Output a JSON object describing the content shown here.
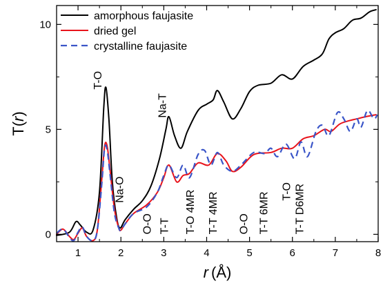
{
  "chart_data": {
    "type": "line",
    "title": "",
    "xlabel": {
      "var": "r",
      "unit": "(Å)"
    },
    "ylabel": {
      "main": "T(",
      "var": "r",
      "close": ")"
    },
    "xlim": [
      0.5,
      8.0
    ],
    "ylim": [
      -0.35,
      10.9
    ],
    "xticks": [
      1,
      2,
      3,
      4,
      5,
      6,
      7,
      8
    ],
    "yticks": [
      0,
      5,
      10
    ],
    "grid": false,
    "legend_position": "top-left",
    "series": [
      {
        "name": "amorphous faujasite",
        "color": "#000000",
        "dash": "",
        "points": [
          [
            0.5,
            -0.05
          ],
          [
            0.8,
            0.1
          ],
          [
            0.95,
            0.6
          ],
          [
            1.05,
            0.45
          ],
          [
            1.2,
            0.1
          ],
          [
            1.35,
            0.2
          ],
          [
            1.5,
            2.0
          ],
          [
            1.6,
            6.0
          ],
          [
            1.65,
            7.0
          ],
          [
            1.72,
            5.5
          ],
          [
            1.8,
            2.5
          ],
          [
            1.9,
            0.8
          ],
          [
            1.98,
            0.3
          ],
          [
            2.1,
            0.7
          ],
          [
            2.3,
            1.2
          ],
          [
            2.5,
            1.6
          ],
          [
            2.7,
            2.3
          ],
          [
            2.9,
            3.6
          ],
          [
            3.05,
            5.0
          ],
          [
            3.12,
            5.6
          ],
          [
            3.25,
            4.7
          ],
          [
            3.4,
            4.1
          ],
          [
            3.55,
            4.9
          ],
          [
            3.8,
            5.9
          ],
          [
            4.0,
            6.2
          ],
          [
            4.15,
            6.4
          ],
          [
            4.25,
            6.85
          ],
          [
            4.4,
            6.3
          ],
          [
            4.6,
            5.5
          ],
          [
            4.8,
            6.0
          ],
          [
            5.0,
            6.8
          ],
          [
            5.2,
            7.1
          ],
          [
            5.5,
            7.2
          ],
          [
            5.75,
            7.6
          ],
          [
            6.0,
            7.4
          ],
          [
            6.25,
            8.0
          ],
          [
            6.5,
            8.3
          ],
          [
            6.7,
            8.6
          ],
          [
            6.85,
            9.3
          ],
          [
            7.0,
            9.6
          ],
          [
            7.2,
            9.8
          ],
          [
            7.4,
            10.2
          ],
          [
            7.6,
            10.3
          ],
          [
            7.8,
            10.6
          ],
          [
            7.95,
            10.7
          ]
        ]
      },
      {
        "name": "dried gel",
        "color": "#e8131b",
        "dash": "",
        "points": [
          [
            0.5,
            0.0
          ],
          [
            0.65,
            0.25
          ],
          [
            0.8,
            -0.1
          ],
          [
            0.9,
            -0.25
          ],
          [
            1.0,
            0.05
          ],
          [
            1.1,
            0.3
          ],
          [
            1.2,
            -0.1
          ],
          [
            1.35,
            -0.3
          ],
          [
            1.45,
            0.2
          ],
          [
            1.55,
            2.5
          ],
          [
            1.62,
            4.2
          ],
          [
            1.68,
            4.2
          ],
          [
            1.75,
            3.0
          ],
          [
            1.85,
            1.2
          ],
          [
            1.95,
            0.3
          ],
          [
            2.0,
            0.2
          ],
          [
            2.1,
            0.5
          ],
          [
            2.3,
            1.0
          ],
          [
            2.6,
            1.4
          ],
          [
            2.85,
            2.0
          ],
          [
            3.0,
            2.7
          ],
          [
            3.12,
            3.3
          ],
          [
            3.3,
            2.5
          ],
          [
            3.45,
            2.8
          ],
          [
            3.6,
            2.9
          ],
          [
            3.8,
            3.4
          ],
          [
            4.05,
            3.3
          ],
          [
            4.25,
            3.85
          ],
          [
            4.45,
            3.5
          ],
          [
            4.6,
            3.0
          ],
          [
            4.8,
            3.2
          ],
          [
            5.1,
            3.8
          ],
          [
            5.5,
            3.9
          ],
          [
            5.75,
            4.1
          ],
          [
            6.0,
            4.1
          ],
          [
            6.25,
            4.55
          ],
          [
            6.5,
            4.7
          ],
          [
            6.75,
            5.0
          ],
          [
            6.9,
            4.9
          ],
          [
            7.1,
            5.25
          ],
          [
            7.3,
            5.4
          ],
          [
            7.5,
            5.5
          ],
          [
            7.7,
            5.6
          ],
          [
            7.95,
            5.7
          ]
        ]
      },
      {
        "name": "crystalline faujasite",
        "color": "#3a55c8",
        "dash": "9,6",
        "points": [
          [
            0.5,
            0.05
          ],
          [
            0.65,
            0.25
          ],
          [
            0.8,
            -0.15
          ],
          [
            0.9,
            -0.3
          ],
          [
            1.0,
            0.1
          ],
          [
            1.1,
            0.35
          ],
          [
            1.2,
            -0.1
          ],
          [
            1.35,
            -0.3
          ],
          [
            1.45,
            0.2
          ],
          [
            1.55,
            2.3
          ],
          [
            1.62,
            4.1
          ],
          [
            1.68,
            4.0
          ],
          [
            1.75,
            2.8
          ],
          [
            1.85,
            1.0
          ],
          [
            1.95,
            0.3
          ],
          [
            2.0,
            0.2
          ],
          [
            2.1,
            0.5
          ],
          [
            2.3,
            1.0
          ],
          [
            2.6,
            1.3
          ],
          [
            2.85,
            2.0
          ],
          [
            3.0,
            2.8
          ],
          [
            3.12,
            3.3
          ],
          [
            3.3,
            2.7
          ],
          [
            3.45,
            3.3
          ],
          [
            3.6,
            2.7
          ],
          [
            3.8,
            3.8
          ],
          [
            3.95,
            4.0
          ],
          [
            4.1,
            3.3
          ],
          [
            4.25,
            3.9
          ],
          [
            4.4,
            3.3
          ],
          [
            4.6,
            3.0
          ],
          [
            4.8,
            3.3
          ],
          [
            5.1,
            3.9
          ],
          [
            5.35,
            3.85
          ],
          [
            5.5,
            4.1
          ],
          [
            5.65,
            3.7
          ],
          [
            5.85,
            4.3
          ],
          [
            6.05,
            3.6
          ],
          [
            6.2,
            4.4
          ],
          [
            6.35,
            3.7
          ],
          [
            6.55,
            4.9
          ],
          [
            6.7,
            5.2
          ],
          [
            6.85,
            4.7
          ],
          [
            7.05,
            5.8
          ],
          [
            7.2,
            5.5
          ],
          [
            7.35,
            4.9
          ],
          [
            7.5,
            5.5
          ],
          [
            7.6,
            5.1
          ],
          [
            7.75,
            5.9
          ],
          [
            7.9,
            5.5
          ],
          [
            7.98,
            5.7
          ]
        ]
      }
    ],
    "annotations": [
      {
        "text": "T-O",
        "x": 1.55,
        "y": 6.9,
        "rotate": -90
      },
      {
        "text": "Na-O",
        "x": 2.05,
        "y": 1.5,
        "rotate": -90
      },
      {
        "text": "Na-T",
        "x": 3.05,
        "y": 5.55,
        "rotate": -90
      },
      {
        "text": "O-O",
        "x": 2.7,
        "y": 0.0,
        "rotate": -90
      },
      {
        "text": "T-T",
        "x": 3.1,
        "y": 0.0,
        "rotate": -90
      },
      {
        "text": "T-O 4MR",
        "x": 3.7,
        "y": 0.0,
        "rotate": -90
      },
      {
        "text": "T-T 4MR",
        "x": 4.23,
        "y": 0.0,
        "rotate": -90
      },
      {
        "text": "O-O",
        "x": 4.95,
        "y": 0.0,
        "rotate": -90
      },
      {
        "text": "T-T 6MR",
        "x": 5.42,
        "y": 0.0,
        "rotate": -90
      },
      {
        "text": "T-O",
        "x": 5.95,
        "y": 1.6,
        "rotate": -90
      },
      {
        "text": "T-T D6MR",
        "x": 6.25,
        "y": 0.0,
        "rotate": -90
      }
    ]
  }
}
